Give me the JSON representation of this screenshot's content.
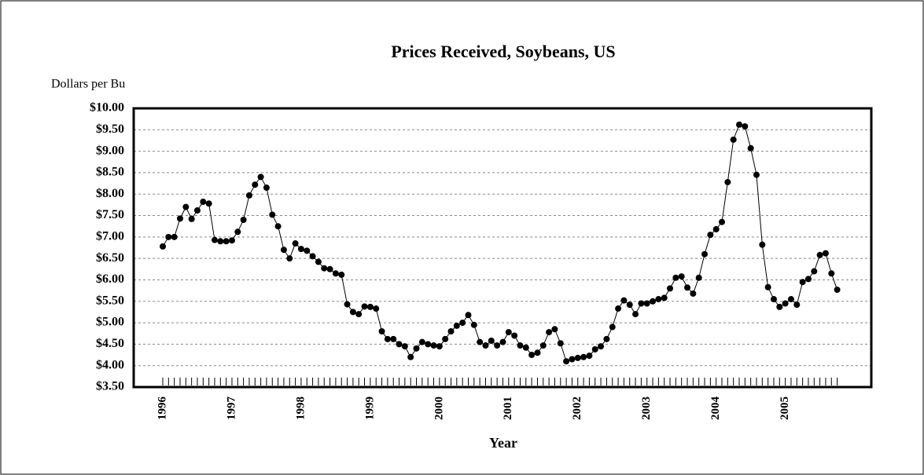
{
  "chart_data": {
    "type": "line",
    "title": "Prices Received, Soybeans, US",
    "y_label": "Dollars per Bu",
    "x_label": "Year",
    "categories": [
      "1996",
      null,
      null,
      null,
      null,
      null,
      null,
      null,
      null,
      null,
      null,
      null,
      "1997",
      null,
      null,
      null,
      null,
      null,
      null,
      null,
      null,
      null,
      null,
      null,
      "1998",
      null,
      null,
      null,
      null,
      null,
      null,
      null,
      null,
      null,
      null,
      null,
      "1999",
      null,
      null,
      null,
      null,
      null,
      null,
      null,
      null,
      null,
      null,
      null,
      "2000",
      null,
      null,
      null,
      null,
      null,
      null,
      null,
      null,
      null,
      null,
      null,
      "2001",
      null,
      null,
      null,
      null,
      null,
      null,
      null,
      null,
      null,
      null,
      null,
      "2002",
      null,
      null,
      null,
      null,
      null,
      null,
      null,
      null,
      null,
      null,
      null,
      "2003",
      null,
      null,
      null,
      null,
      null,
      null,
      null,
      null,
      null,
      null,
      null,
      "2004",
      null,
      null,
      null,
      null,
      null,
      null,
      null,
      null,
      null,
      null,
      null,
      "2005",
      null,
      null,
      null,
      null,
      null,
      null,
      null,
      null,
      null
    ],
    "series": [
      {
        "name": "Price",
        "color": "#000000",
        "values": [
          6.78,
          7.0,
          7.0,
          7.43,
          7.7,
          7.42,
          7.62,
          7.82,
          7.78,
          6.93,
          6.9,
          6.9,
          6.92,
          7.12,
          7.4,
          7.97,
          8.22,
          8.4,
          8.15,
          7.52,
          7.25,
          6.7,
          6.5,
          6.85,
          6.72,
          6.68,
          6.55,
          6.42,
          6.27,
          6.25,
          6.15,
          6.12,
          5.43,
          5.25,
          5.2,
          5.38,
          5.37,
          5.33,
          4.8,
          4.62,
          4.62,
          4.5,
          4.45,
          4.2,
          4.4,
          4.55,
          4.5,
          4.47,
          4.45,
          4.62,
          4.8,
          4.93,
          5.0,
          5.18,
          4.95,
          4.55,
          4.47,
          4.58,
          4.47,
          4.55,
          4.78,
          4.7,
          4.47,
          4.42,
          4.25,
          4.3,
          4.47,
          4.78,
          4.85,
          4.52,
          4.1,
          4.15,
          4.18,
          4.2,
          4.23,
          4.38,
          4.45,
          4.62,
          4.9,
          5.33,
          5.52,
          5.42,
          5.2,
          5.45,
          5.45,
          5.5,
          5.55,
          5.58,
          5.8,
          6.05,
          6.08,
          5.82,
          5.68,
          6.05,
          6.6,
          7.05,
          7.18,
          7.35,
          8.28,
          9.27,
          9.62,
          9.58,
          9.07,
          8.45,
          6.82,
          5.83,
          5.55,
          5.37,
          5.45,
          5.55,
          5.42,
          5.95,
          6.02,
          6.2,
          6.58,
          6.62,
          6.15,
          5.77
        ]
      }
    ],
    "ylim": [
      3.5,
      10
    ],
    "yticks": [
      {
        "value": 3.5,
        "label": "$3.50"
      },
      {
        "value": 4,
        "label": "$4.00"
      },
      {
        "value": 4.5,
        "label": "$4.50"
      },
      {
        "value": 5,
        "label": "$5.00"
      },
      {
        "value": 5.5,
        "label": "$5.50"
      },
      {
        "value": 6,
        "label": "$6.00"
      },
      {
        "value": 6.5,
        "label": "$6.50"
      },
      {
        "value": 7,
        "label": "$7.00"
      },
      {
        "value": 7.5,
        "label": "$7.50"
      },
      {
        "value": 8,
        "label": "$8.00"
      },
      {
        "value": 8.5,
        "label": "$8.50"
      },
      {
        "value": 9,
        "label": "$9.00"
      },
      {
        "value": 9.5,
        "label": "$9.50"
      },
      {
        "value": 10,
        "label": "$10.00"
      }
    ],
    "grid": true
  }
}
